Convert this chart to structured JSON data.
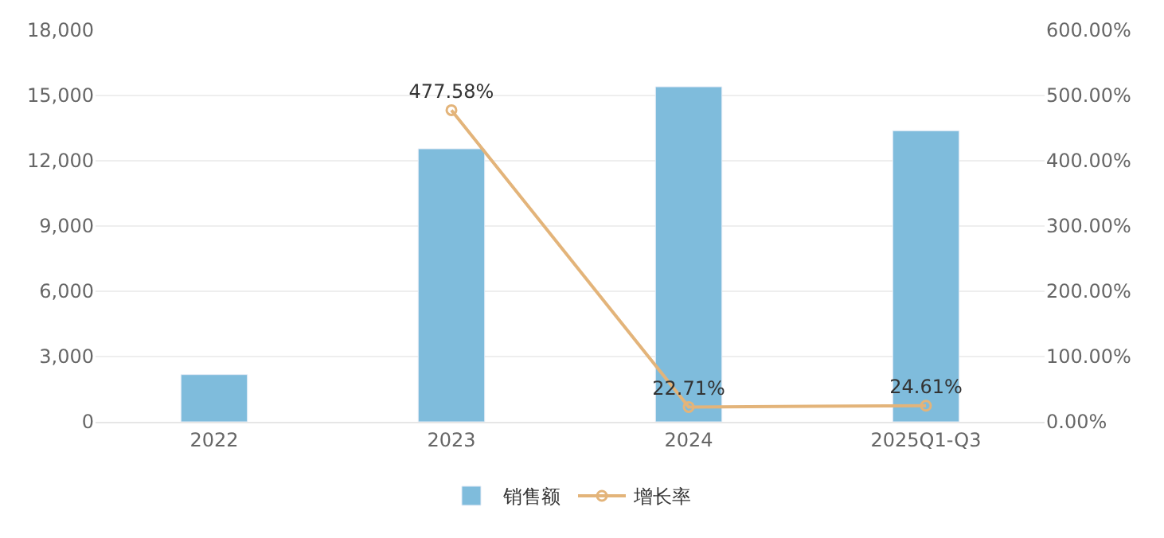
{
  "chart_data": {
    "type": "bar",
    "categories": [
      "2022",
      "2023",
      "2024",
      "2025Q1-Q3"
    ],
    "series": [
      {
        "name": "销售额",
        "color": "#7fbcdc",
        "values": [
          2170,
          12550,
          15400,
          13380
        ]
      },
      {
        "name": "增长率",
        "type": "line",
        "axis": "y2",
        "color": "#e3b47a",
        "marker": "circle",
        "values": [
          null,
          477.58,
          22.71,
          24.61
        ],
        "value_labels": [
          null,
          "477.58%",
          "22.71%",
          "24.61%"
        ]
      }
    ],
    "ylim": [
      0,
      18000
    ],
    "yticks": [
      {
        "value": 0,
        "label": "0"
      },
      {
        "value": 3000,
        "label": "3,000"
      },
      {
        "value": 6000,
        "label": "6,000"
      },
      {
        "value": 9000,
        "label": "9,000"
      },
      {
        "value": 12000,
        "label": "12,000"
      },
      {
        "value": 15000,
        "label": "15,000"
      },
      {
        "value": 18000,
        "label": "18,000"
      }
    ],
    "y2lim": [
      0,
      600
    ],
    "y2ticks": [
      {
        "value": 0,
        "label": "0.00%"
      },
      {
        "value": 100,
        "label": "100.00%"
      },
      {
        "value": 200,
        "label": "200.00%"
      },
      {
        "value": 300,
        "label": "300.00%"
      },
      {
        "value": 400,
        "label": "400.00%"
      },
      {
        "value": 500,
        "label": "500.00%"
      },
      {
        "value": 600,
        "label": "600.00%"
      }
    ],
    "grid": "y",
    "legend": "bottom"
  }
}
